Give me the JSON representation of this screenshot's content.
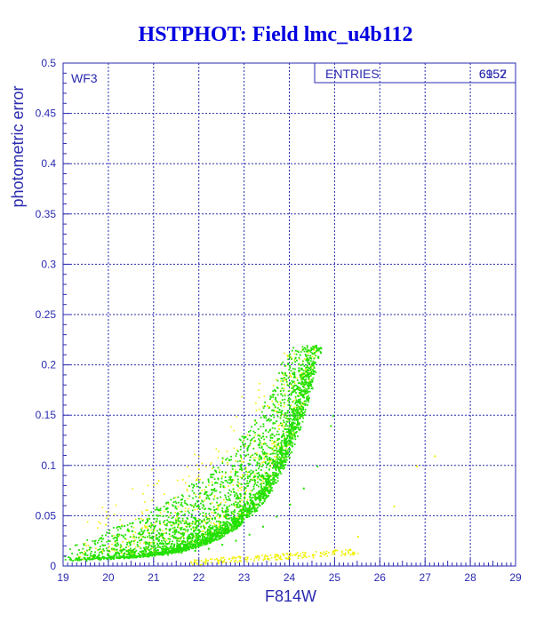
{
  "chart_data": {
    "type": "scatter",
    "title": "HSTPHOT: Field lmc_u4b112",
    "xlabel": "F814W",
    "ylabel": "photometric error",
    "xlim": [
      19,
      29
    ],
    "ylim": [
      0,
      0.5
    ],
    "x_ticks": [
      "19",
      "20",
      "21",
      "22",
      "23",
      "24",
      "25",
      "26",
      "27",
      "28",
      "29"
    ],
    "y_ticks": [
      "0",
      "0.05",
      "0.1",
      "0.15",
      "0.2",
      "0.25",
      "0.3",
      "0.35",
      "0.4",
      "0.45",
      "0.5"
    ],
    "grid": true,
    "panel_label": "WF3",
    "stats": {
      "label": "ENTRIES",
      "value": "6952",
      "overprinted": "6157"
    },
    "colors": {
      "axis": "#2a2ab0",
      "grid": "#2a2ab0",
      "title": "#0000e0",
      "main_series": "#22e000",
      "secondary_series": "#f0f000"
    },
    "series": [
      {
        "color": "#22e000",
        "description_curve": "dense locus y ≈ 0.006 + 0.00095·e^(1.0·(x−19.2)) up to x≈25, spreading upward to ~0.2 near x=24.7",
        "points": [
          [
            19.2,
            0.006
          ],
          [
            19.5,
            0.006
          ],
          [
            19.8,
            0.007
          ],
          [
            20.1,
            0.008
          ],
          [
            20.4,
            0.009
          ],
          [
            20.7,
            0.01
          ],
          [
            21.0,
            0.011
          ],
          [
            21.3,
            0.012
          ],
          [
            21.6,
            0.014
          ],
          [
            21.9,
            0.016
          ],
          [
            22.2,
            0.018
          ],
          [
            22.5,
            0.022
          ],
          [
            22.8,
            0.026
          ],
          [
            23.1,
            0.032
          ],
          [
            23.4,
            0.04
          ],
          [
            23.7,
            0.05
          ],
          [
            24.0,
            0.062
          ],
          [
            24.3,
            0.078
          ],
          [
            24.6,
            0.1
          ],
          [
            24.9,
            0.14
          ],
          [
            24.95,
            0.15
          ]
        ]
      },
      {
        "color": "#f0f000",
        "description_curve": "scattered points above main locus and a faint low-error sequence near y≈0.01 from x=22 to x=25.5",
        "points": [
          [
            20.0,
            0.02
          ],
          [
            20.8,
            0.04
          ],
          [
            21.5,
            0.05
          ],
          [
            22.0,
            0.07
          ],
          [
            22.5,
            0.09
          ],
          [
            23.0,
            0.12
          ],
          [
            23.5,
            0.16
          ],
          [
            24.0,
            0.19
          ],
          [
            22.5,
            0.005
          ],
          [
            23.5,
            0.008
          ],
          [
            24.5,
            0.012
          ],
          [
            25.5,
            0.03
          ],
          [
            26.8,
            0.1
          ],
          [
            27.2,
            0.11
          ],
          [
            26.3,
            0.06
          ]
        ]
      }
    ]
  }
}
